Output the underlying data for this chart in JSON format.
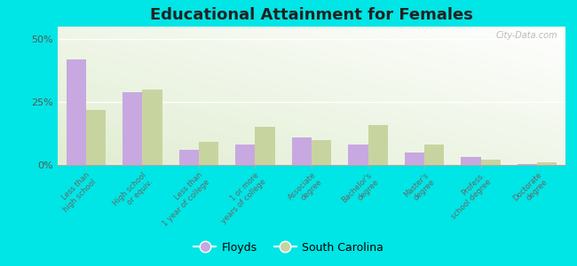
{
  "title": "Educational Attainment for Females",
  "categories": [
    "Less than\nhigh school",
    "High school\nor equiv.",
    "Less than\n1 year of college",
    "1 or more\nyears of college",
    "Associate\ndegree",
    "Bachelor's\ndegree",
    "Master's\ndegree",
    "Profess.\nschool degree",
    "Doctorate\ndegree"
  ],
  "floyds": [
    42,
    29,
    6,
    8,
    11,
    8,
    5,
    3,
    0.5
  ],
  "south_carolina": [
    22,
    30,
    9,
    15,
    10,
    16,
    8,
    2,
    1
  ],
  "floyds_color": "#c8a8e0",
  "sc_color": "#c8d4a0",
  "ylim": [
    0,
    55
  ],
  "yticks": [
    0,
    25,
    50
  ],
  "ytick_labels": [
    "0%",
    "25%",
    "50%"
  ],
  "outer_color": "#00e5e5",
  "legend_floyds": "Floyds",
  "legend_sc": "South Carolina",
  "watermark": "City-Data.com"
}
